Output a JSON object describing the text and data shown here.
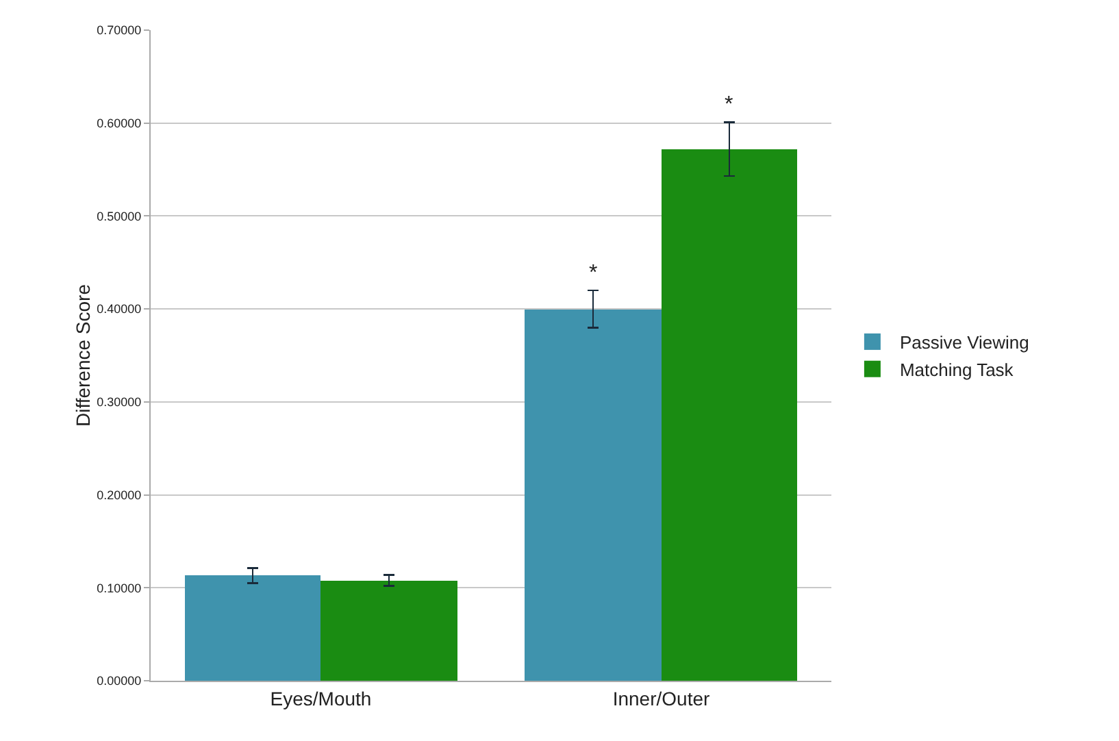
{
  "chart_data": {
    "type": "bar",
    "ylabel": "Difference Score",
    "categories": [
      "Eyes/Mouth",
      "Inner/Outer"
    ],
    "series": [
      {
        "name": "Passive Viewing",
        "color": "#3f93ad",
        "values": [
          0.113,
          0.4
        ],
        "errors": [
          0.008,
          0.02
        ]
      },
      {
        "name": "Matching Task",
        "color": "#1a8c12",
        "values": [
          0.108,
          0.572
        ],
        "errors": [
          0.006,
          0.029
        ]
      }
    ],
    "annotations": [
      "*",
      "*"
    ],
    "ylim": [
      0,
      0.7
    ],
    "yticks": [
      {
        "value": 0,
        "label": "0.00000"
      },
      {
        "value": 0.1,
        "label": "0.10000"
      },
      {
        "value": 0.2,
        "label": "0.20000"
      },
      {
        "value": 0.3,
        "label": "0.30000"
      },
      {
        "value": 0.4,
        "label": "0.40000"
      },
      {
        "value": 0.5,
        "label": "0.50000"
      },
      {
        "value": 0.6,
        "label": "0.60000"
      },
      {
        "value": 0.7,
        "label": "0.70000"
      }
    ],
    "grid": "y",
    "legend": "right"
  }
}
